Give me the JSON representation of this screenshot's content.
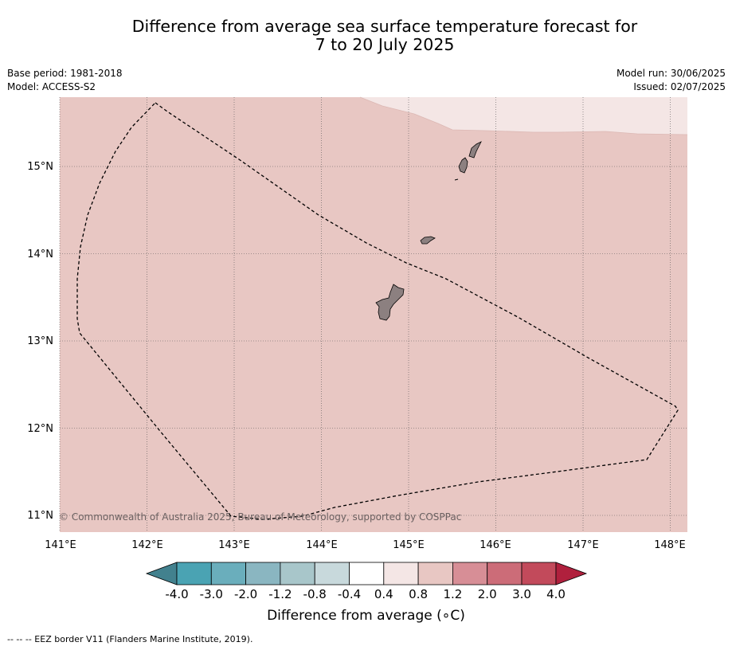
{
  "title_line1": "Difference from average sea surface temperature forecast for",
  "title_line2": "7 to 20 July 2025",
  "base_period": "Base period: 1981-2018",
  "model": "Model: ACCESS-S2",
  "model_run": "Model run: 30/06/2025",
  "issued": "Issued: 02/07/2025",
  "map": {
    "lon_labels": [
      "141°E",
      "142°E",
      "143°E",
      "144°E",
      "145°E",
      "146°E",
      "147°E",
      "148°E"
    ],
    "lat_labels": [
      "15°N",
      "14°N",
      "13°N",
      "12°N",
      "11°N"
    ],
    "copyright": "© Commonwealth of Australia 2025, Bureau of Meteorology, supported by COSPPac",
    "colors": {
      "anomaly_0_4_to_0_8": "#f4e6e5",
      "anomaly_0_8_to_1_2": "#e8c7c3",
      "land": "#8c8080",
      "eez_line": "#000000"
    }
  },
  "colorbar": {
    "title": "Difference from average (∘C)",
    "tick_labels": [
      "-4.0",
      "-3.0",
      "-2.0",
      "-1.2",
      "-0.8",
      "-0.4",
      "0.4",
      "0.8",
      "1.2",
      "2.0",
      "3.0",
      "4.0"
    ],
    "colors": [
      "#42818e",
      "#4aa3b3",
      "#6aaebc",
      "#8ab6c1",
      "#a8c6ca",
      "#c8d9dc",
      "#ffffff",
      "#f4e6e5",
      "#e8c7c3",
      "#d78e96",
      "#cc6c78",
      "#c24a5b",
      "#b0203d"
    ]
  },
  "legend_note": "--  --  -- EEZ border V11 (Flanders Marine Institute, 2019)."
}
